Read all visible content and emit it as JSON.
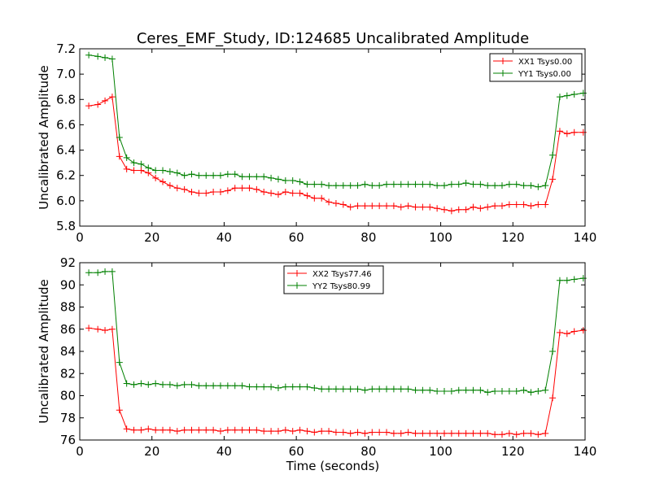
{
  "chart_data": [
    {
      "type": "line",
      "title": "Ceres_EMF_Study, ID:124685 Uncalibrated Amplitude",
      "xlabel": "",
      "ylabel": "Uncalibrated Amplitude",
      "xlim": [
        0,
        140
      ],
      "ylim": [
        5.8,
        7.2
      ],
      "xticks": [
        "0",
        "20",
        "40",
        "60",
        "80",
        "100",
        "120",
        "140"
      ],
      "yticks": [
        "5.8",
        "6.0",
        "6.2",
        "6.4",
        "6.6",
        "6.8",
        "7.0",
        "7.2"
      ],
      "grid": false,
      "legend": "top-right",
      "series": [
        {
          "name": "XX1 Tsys0.00",
          "color": "#ff0000",
          "x": [
            2.5,
            5,
            7,
            9,
            11,
            13,
            15,
            17,
            19,
            21,
            23,
            25,
            27,
            29,
            31,
            33,
            35,
            37,
            39,
            41,
            43,
            45,
            47,
            49,
            51,
            53,
            55,
            57,
            59,
            61,
            63,
            65,
            67,
            69,
            71,
            73,
            75,
            77,
            79,
            81,
            83,
            85,
            87,
            89,
            91,
            93,
            95,
            97,
            99,
            101,
            103,
            105,
            107,
            109,
            111,
            113,
            115,
            117,
            119,
            121,
            123,
            125,
            127,
            129,
            131,
            133,
            135,
            137,
            139.5
          ],
          "y": [
            6.75,
            6.76,
            6.79,
            6.82,
            6.35,
            6.25,
            6.24,
            6.24,
            6.22,
            6.18,
            6.15,
            6.12,
            6.1,
            6.09,
            6.07,
            6.06,
            6.06,
            6.07,
            6.07,
            6.08,
            6.1,
            6.1,
            6.1,
            6.09,
            6.07,
            6.06,
            6.05,
            6.07,
            6.06,
            6.06,
            6.04,
            6.02,
            6.02,
            5.99,
            5.98,
            5.97,
            5.95,
            5.96,
            5.96,
            5.96,
            5.96,
            5.96,
            5.96,
            5.95,
            5.96,
            5.95,
            5.95,
            5.95,
            5.94,
            5.93,
            5.92,
            5.93,
            5.93,
            5.95,
            5.94,
            5.95,
            5.96,
            5.96,
            5.97,
            5.97,
            5.97,
            5.96,
            5.97,
            5.97,
            6.17,
            6.55,
            6.53,
            6.54,
            6.54
          ]
        },
        {
          "name": "YY1 Tsys0.00",
          "color": "#008000",
          "x": [
            2.5,
            5,
            7,
            9,
            11,
            13,
            15,
            17,
            19,
            21,
            23,
            25,
            27,
            29,
            31,
            33,
            35,
            37,
            39,
            41,
            43,
            45,
            47,
            49,
            51,
            53,
            55,
            57,
            59,
            61,
            63,
            65,
            67,
            69,
            71,
            73,
            75,
            77,
            79,
            81,
            83,
            85,
            87,
            89,
            91,
            93,
            95,
            97,
            99,
            101,
            103,
            105,
            107,
            109,
            111,
            113,
            115,
            117,
            119,
            121,
            123,
            125,
            127,
            129,
            131,
            133,
            135,
            137,
            139.5
          ],
          "y": [
            7.15,
            7.14,
            7.13,
            7.12,
            6.5,
            6.34,
            6.3,
            6.29,
            6.26,
            6.24,
            6.24,
            6.23,
            6.22,
            6.2,
            6.21,
            6.2,
            6.2,
            6.2,
            6.2,
            6.21,
            6.21,
            6.19,
            6.19,
            6.19,
            6.19,
            6.18,
            6.17,
            6.16,
            6.16,
            6.15,
            6.13,
            6.13,
            6.13,
            6.12,
            6.12,
            6.12,
            6.12,
            6.12,
            6.13,
            6.12,
            6.12,
            6.13,
            6.13,
            6.13,
            6.13,
            6.13,
            6.13,
            6.13,
            6.12,
            6.12,
            6.13,
            6.13,
            6.14,
            6.13,
            6.13,
            6.12,
            6.12,
            6.12,
            6.13,
            6.13,
            6.12,
            6.12,
            6.11,
            6.12,
            6.36,
            6.82,
            6.83,
            6.84,
            6.85
          ]
        }
      ]
    },
    {
      "type": "line",
      "title": "",
      "xlabel": "Time (seconds)",
      "ylabel": "Uncalibrated Amplitude",
      "xlim": [
        0,
        140
      ],
      "ylim": [
        76,
        92
      ],
      "xticks": [
        "0",
        "20",
        "40",
        "60",
        "80",
        "100",
        "120",
        "140"
      ],
      "yticks": [
        "76",
        "78",
        "80",
        "82",
        "84",
        "86",
        "88",
        "90",
        "92"
      ],
      "grid": false,
      "legend": "top-center",
      "series": [
        {
          "name": "XX2 Tsys77.46",
          "color": "#ff0000",
          "x": [
            2.5,
            5,
            7,
            9,
            11,
            13,
            15,
            17,
            19,
            21,
            23,
            25,
            27,
            29,
            31,
            33,
            35,
            37,
            39,
            41,
            43,
            45,
            47,
            49,
            51,
            53,
            55,
            57,
            59,
            61,
            63,
            65,
            67,
            69,
            71,
            73,
            75,
            77,
            79,
            81,
            83,
            85,
            87,
            89,
            91,
            93,
            95,
            97,
            99,
            101,
            103,
            105,
            107,
            109,
            111,
            113,
            115,
            117,
            119,
            121,
            123,
            125,
            127,
            129,
            131,
            133,
            135,
            137,
            139.5
          ],
          "y": [
            86.1,
            86.0,
            85.9,
            86.0,
            78.7,
            77.0,
            76.9,
            76.9,
            77.0,
            76.9,
            76.9,
            76.9,
            76.8,
            76.9,
            76.9,
            76.9,
            76.9,
            76.9,
            76.8,
            76.9,
            76.9,
            76.9,
            76.9,
            76.9,
            76.8,
            76.8,
            76.8,
            76.9,
            76.8,
            76.9,
            76.8,
            76.7,
            76.8,
            76.8,
            76.7,
            76.7,
            76.6,
            76.7,
            76.6,
            76.7,
            76.7,
            76.7,
            76.6,
            76.6,
            76.7,
            76.6,
            76.6,
            76.6,
            76.6,
            76.6,
            76.6,
            76.6,
            76.6,
            76.6,
            76.6,
            76.6,
            76.5,
            76.5,
            76.6,
            76.5,
            76.6,
            76.6,
            76.5,
            76.6,
            79.8,
            85.7,
            85.6,
            85.8,
            85.9
          ]
        },
        {
          "name": "YY2 Tsys80.99",
          "color": "#008000",
          "x": [
            2.5,
            5,
            7,
            9,
            11,
            13,
            15,
            17,
            19,
            21,
            23,
            25,
            27,
            29,
            31,
            33,
            35,
            37,
            39,
            41,
            43,
            45,
            47,
            49,
            51,
            53,
            55,
            57,
            59,
            61,
            63,
            65,
            67,
            69,
            71,
            73,
            75,
            77,
            79,
            81,
            83,
            85,
            87,
            89,
            91,
            93,
            95,
            97,
            99,
            101,
            103,
            105,
            107,
            109,
            111,
            113,
            115,
            117,
            119,
            121,
            123,
            125,
            127,
            129,
            131,
            133,
            135,
            137,
            139.5
          ],
          "y": [
            91.1,
            91.1,
            91.2,
            91.2,
            83.0,
            81.1,
            81.0,
            81.1,
            81.0,
            81.1,
            81.0,
            81.0,
            80.9,
            81.0,
            81.0,
            80.9,
            80.9,
            80.9,
            80.9,
            80.9,
            80.9,
            80.9,
            80.8,
            80.8,
            80.8,
            80.8,
            80.7,
            80.8,
            80.8,
            80.8,
            80.8,
            80.7,
            80.6,
            80.6,
            80.6,
            80.6,
            80.6,
            80.6,
            80.5,
            80.6,
            80.6,
            80.6,
            80.6,
            80.6,
            80.6,
            80.5,
            80.5,
            80.5,
            80.4,
            80.4,
            80.4,
            80.5,
            80.5,
            80.5,
            80.5,
            80.3,
            80.4,
            80.4,
            80.4,
            80.4,
            80.5,
            80.3,
            80.4,
            80.5,
            84.0,
            90.4,
            90.4,
            90.5,
            90.6
          ]
        }
      ]
    }
  ]
}
